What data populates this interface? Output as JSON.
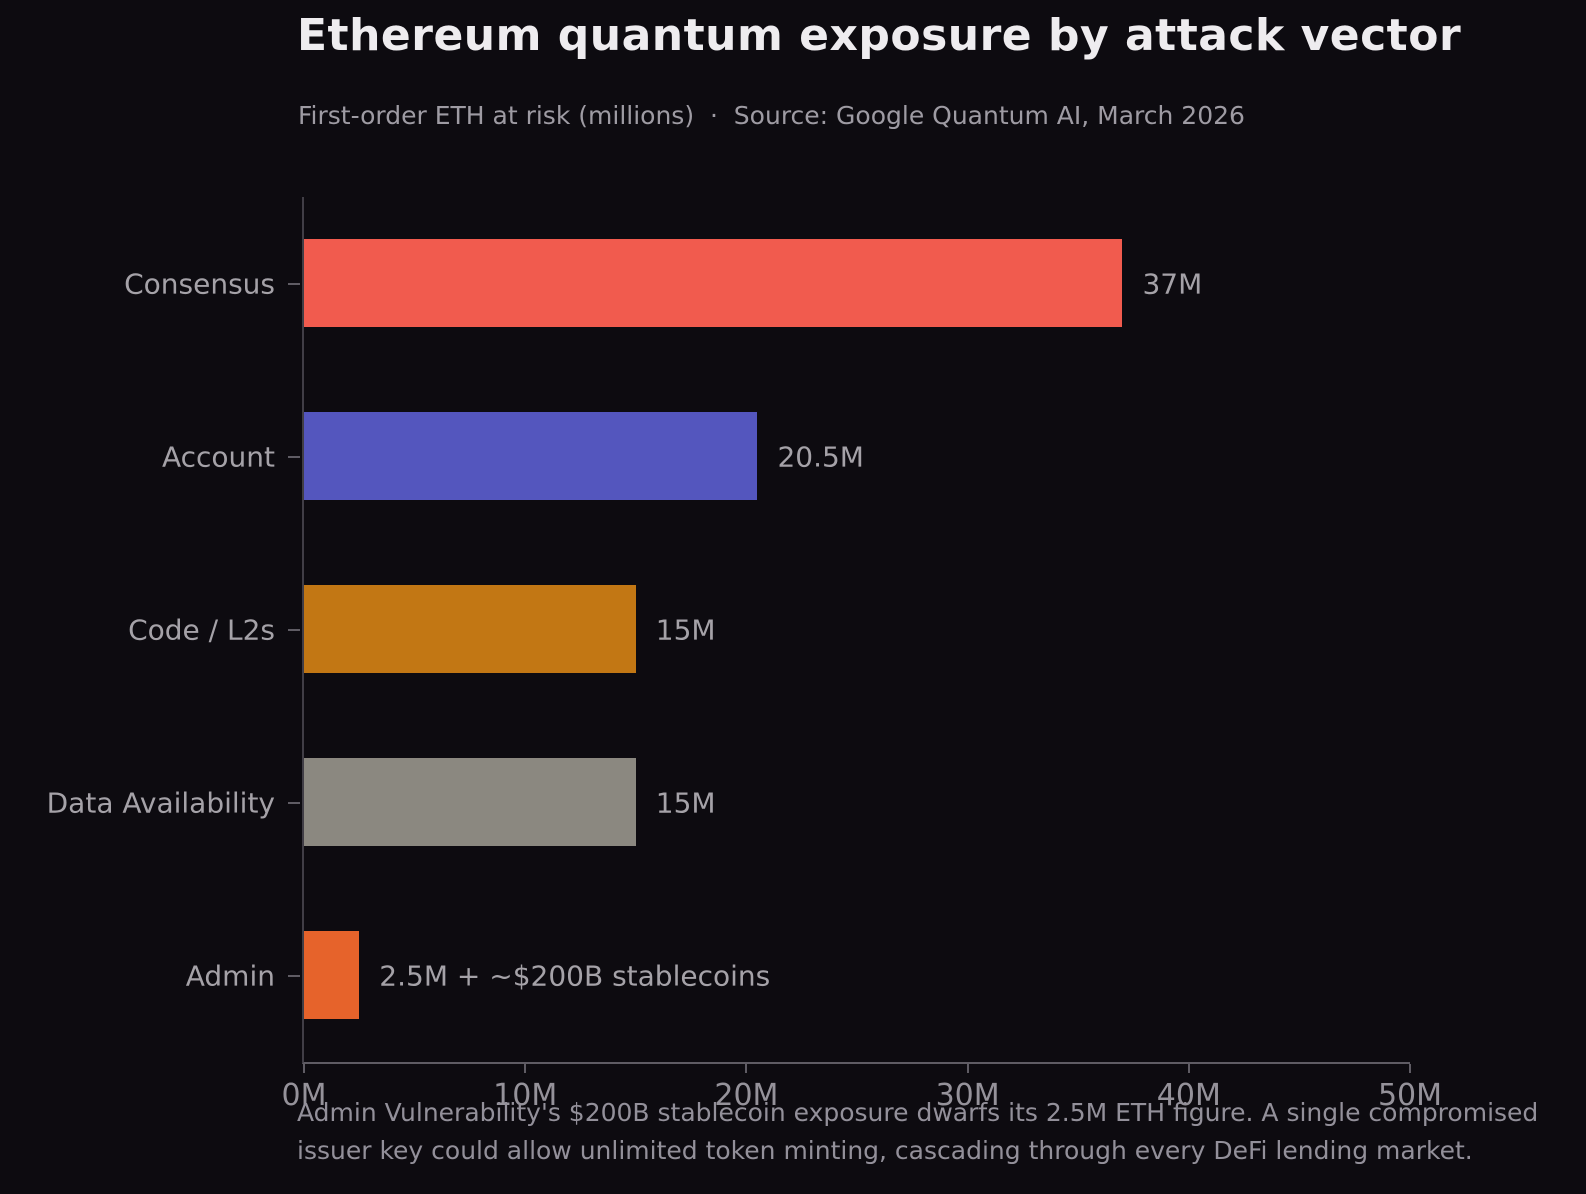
{
  "header": {
    "title": "Ethereum quantum exposure by attack vector",
    "subtitle": "First-order ETH at risk (millions)  ·  Source: Google Quantum AI, March 2026"
  },
  "chart_data": {
    "type": "bar",
    "orientation": "horizontal",
    "title": "Ethereum quantum exposure by attack vector",
    "xlabel": "",
    "ylabel": "",
    "categories": [
      "Consensus",
      "Account",
      "Code / L2s",
      "Data Availability",
      "Admin"
    ],
    "values": [
      37,
      20.5,
      15,
      15,
      2.5
    ],
    "value_labels": [
      "37M",
      "20.5M",
      "15M",
      "15M",
      "2.5M + ~$200B stablecoins"
    ],
    "bar_colors": [
      "#f15b4e",
      "#5456be",
      "#c27714",
      "#8b8880",
      "#e6632b"
    ],
    "x_tick_values": [
      0,
      10,
      20,
      30,
      40,
      50
    ],
    "x_tick_labels": [
      "0M",
      "10M",
      "20M",
      "30M",
      "40M",
      "50M"
    ],
    "xlim": [
      0,
      50
    ],
    "grid": false,
    "legend": false
  },
  "footer": {
    "note": "Admin Vulnerability's $200B stablecoin exposure dwarfs its 2.5M ETH figure. A single compromised issuer key could allow unlimited token minting, cascading through every DeFi lending market."
  },
  "colors": {
    "background": "#0d0b10",
    "title_text": "#eeecef",
    "subtitle_text": "#9e9ba3",
    "category_text": "#a5a2a8",
    "value_text": "#a5a2a8",
    "tick_text": "#95929a",
    "axis_line": "#5f5c64",
    "spine_line": "#413e46"
  }
}
